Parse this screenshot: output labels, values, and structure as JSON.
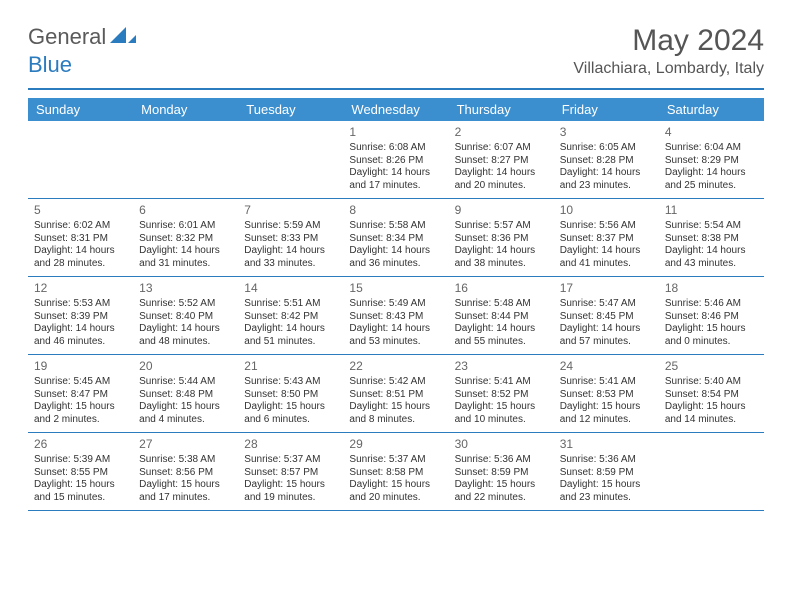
{
  "brand": {
    "part1": "General",
    "part2": "Blue"
  },
  "title": "May 2024",
  "subtitle": "Villachiara, Lombardy, Italy",
  "colors": {
    "accent": "#2b7bbf",
    "header_bg": "#3b8fcf",
    "text": "#333333",
    "muted": "#666666",
    "brand_gray": "#5a5a5a",
    "background": "#ffffff"
  },
  "typography": {
    "title_fontsize": 30,
    "subtitle_fontsize": 16,
    "dayheader_fontsize": 13,
    "daynum_fontsize": 12,
    "body_fontsize": 10
  },
  "day_names": [
    "Sunday",
    "Monday",
    "Tuesday",
    "Wednesday",
    "Thursday",
    "Friday",
    "Saturday"
  ],
  "weeks": [
    [
      null,
      null,
      null,
      {
        "n": "1",
        "sr": "6:08 AM",
        "ss": "8:26 PM",
        "dl": "14 hours and 17 minutes."
      },
      {
        "n": "2",
        "sr": "6:07 AM",
        "ss": "8:27 PM",
        "dl": "14 hours and 20 minutes."
      },
      {
        "n": "3",
        "sr": "6:05 AM",
        "ss": "8:28 PM",
        "dl": "14 hours and 23 minutes."
      },
      {
        "n": "4",
        "sr": "6:04 AM",
        "ss": "8:29 PM",
        "dl": "14 hours and 25 minutes."
      }
    ],
    [
      {
        "n": "5",
        "sr": "6:02 AM",
        "ss": "8:31 PM",
        "dl": "14 hours and 28 minutes."
      },
      {
        "n": "6",
        "sr": "6:01 AM",
        "ss": "8:32 PM",
        "dl": "14 hours and 31 minutes."
      },
      {
        "n": "7",
        "sr": "5:59 AM",
        "ss": "8:33 PM",
        "dl": "14 hours and 33 minutes."
      },
      {
        "n": "8",
        "sr": "5:58 AM",
        "ss": "8:34 PM",
        "dl": "14 hours and 36 minutes."
      },
      {
        "n": "9",
        "sr": "5:57 AM",
        "ss": "8:36 PM",
        "dl": "14 hours and 38 minutes."
      },
      {
        "n": "10",
        "sr": "5:56 AM",
        "ss": "8:37 PM",
        "dl": "14 hours and 41 minutes."
      },
      {
        "n": "11",
        "sr": "5:54 AM",
        "ss": "8:38 PM",
        "dl": "14 hours and 43 minutes."
      }
    ],
    [
      {
        "n": "12",
        "sr": "5:53 AM",
        "ss": "8:39 PM",
        "dl": "14 hours and 46 minutes."
      },
      {
        "n": "13",
        "sr": "5:52 AM",
        "ss": "8:40 PM",
        "dl": "14 hours and 48 minutes."
      },
      {
        "n": "14",
        "sr": "5:51 AM",
        "ss": "8:42 PM",
        "dl": "14 hours and 51 minutes."
      },
      {
        "n": "15",
        "sr": "5:49 AM",
        "ss": "8:43 PM",
        "dl": "14 hours and 53 minutes."
      },
      {
        "n": "16",
        "sr": "5:48 AM",
        "ss": "8:44 PM",
        "dl": "14 hours and 55 minutes."
      },
      {
        "n": "17",
        "sr": "5:47 AM",
        "ss": "8:45 PM",
        "dl": "14 hours and 57 minutes."
      },
      {
        "n": "18",
        "sr": "5:46 AM",
        "ss": "8:46 PM",
        "dl": "15 hours and 0 minutes."
      }
    ],
    [
      {
        "n": "19",
        "sr": "5:45 AM",
        "ss": "8:47 PM",
        "dl": "15 hours and 2 minutes."
      },
      {
        "n": "20",
        "sr": "5:44 AM",
        "ss": "8:48 PM",
        "dl": "15 hours and 4 minutes."
      },
      {
        "n": "21",
        "sr": "5:43 AM",
        "ss": "8:50 PM",
        "dl": "15 hours and 6 minutes."
      },
      {
        "n": "22",
        "sr": "5:42 AM",
        "ss": "8:51 PM",
        "dl": "15 hours and 8 minutes."
      },
      {
        "n": "23",
        "sr": "5:41 AM",
        "ss": "8:52 PM",
        "dl": "15 hours and 10 minutes."
      },
      {
        "n": "24",
        "sr": "5:41 AM",
        "ss": "8:53 PM",
        "dl": "15 hours and 12 minutes."
      },
      {
        "n": "25",
        "sr": "5:40 AM",
        "ss": "8:54 PM",
        "dl": "15 hours and 14 minutes."
      }
    ],
    [
      {
        "n": "26",
        "sr": "5:39 AM",
        "ss": "8:55 PM",
        "dl": "15 hours and 15 minutes."
      },
      {
        "n": "27",
        "sr": "5:38 AM",
        "ss": "8:56 PM",
        "dl": "15 hours and 17 minutes."
      },
      {
        "n": "28",
        "sr": "5:37 AM",
        "ss": "8:57 PM",
        "dl": "15 hours and 19 minutes."
      },
      {
        "n": "29",
        "sr": "5:37 AM",
        "ss": "8:58 PM",
        "dl": "15 hours and 20 minutes."
      },
      {
        "n": "30",
        "sr": "5:36 AM",
        "ss": "8:59 PM",
        "dl": "15 hours and 22 minutes."
      },
      {
        "n": "31",
        "sr": "5:36 AM",
        "ss": "8:59 PM",
        "dl": "15 hours and 23 minutes."
      },
      null
    ]
  ],
  "labels": {
    "sunrise": "Sunrise:",
    "sunset": "Sunset:",
    "daylight": "Daylight:"
  }
}
